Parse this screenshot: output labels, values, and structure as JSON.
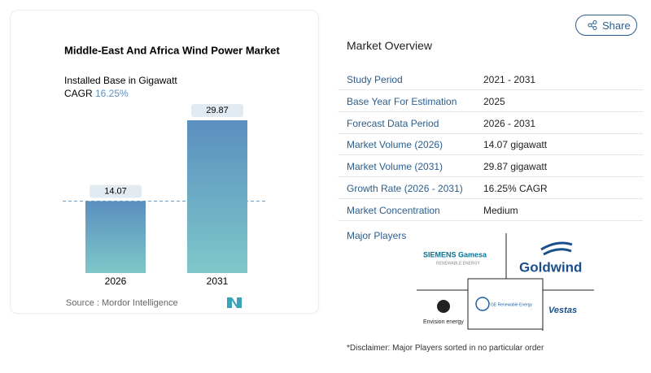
{
  "chart_data": {
    "type": "bar",
    "title": "Middle-East And Africa Wind Power Market",
    "subtitle": "Installed Base in Gigawatt",
    "cagr_label": "CAGR",
    "cagr_value": "16.25%",
    "categories": [
      "2026",
      "2031"
    ],
    "values": [
      14.07,
      29.87
    ],
    "source": "Source : Mordor Intelligence"
  },
  "share": "Share",
  "overview": {
    "title": "Market Overview",
    "rows": [
      [
        "Study Period",
        "2021 - 2031"
      ],
      [
        "Base Year For Estimation",
        "2025"
      ],
      [
        "Forecast Data Period",
        "2026 - 2031"
      ],
      [
        "Market Volume (2026)",
        "14.07 gigawatt"
      ],
      [
        "Market Volume (2031)",
        "29.87 gigawatt"
      ],
      [
        "Growth Rate (2026 - 2031)",
        "16.25% CAGR"
      ],
      [
        "Market Concentration",
        "Medium"
      ]
    ]
  },
  "players": {
    "title": "Major Players",
    "logos": [
      "SIEMENS Gamesa",
      "RENEWABLE ENERGY",
      "Goldwind",
      "Envision energy",
      "GE Renewable Energy",
      "Vestas"
    ]
  },
  "disclaimer": "*Disclaimer: Major Players sorted in no particular order"
}
